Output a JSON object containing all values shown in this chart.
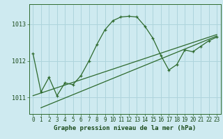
{
  "title": "Graphe pression niveau de la mer (hPa)",
  "background_color": "#ceeaf0",
  "grid_color": "#aed4dc",
  "line_color": "#2d6a2d",
  "xlim": [
    -0.5,
    23.5
  ],
  "ylim": [
    1010.55,
    1013.55
  ],
  "yticks": [
    1011,
    1012,
    1013
  ],
  "xticks": [
    0,
    1,
    2,
    3,
    4,
    5,
    6,
    7,
    8,
    9,
    10,
    11,
    12,
    13,
    14,
    15,
    16,
    17,
    18,
    19,
    20,
    21,
    22,
    23
  ],
  "main_line_x": [
    0,
    1,
    2,
    3,
    4,
    5,
    6,
    7,
    8,
    9,
    10,
    11,
    12,
    13,
    14,
    15,
    16,
    17,
    18,
    19,
    20,
    21,
    22,
    23
  ],
  "main_line_y": [
    1012.2,
    1011.15,
    1011.55,
    1011.05,
    1011.4,
    1011.35,
    1011.6,
    1012.0,
    1012.45,
    1012.85,
    1013.1,
    1013.2,
    1013.22,
    1013.2,
    1012.95,
    1012.62,
    1012.15,
    1011.75,
    1011.9,
    1012.3,
    1012.25,
    1012.4,
    1012.55,
    1012.65
  ],
  "trend_line_x": [
    0,
    23
  ],
  "trend_line_y": [
    1011.05,
    1012.72
  ],
  "trend_line2_x": [
    1,
    23
  ],
  "trend_line2_y": [
    1010.72,
    1012.68
  ],
  "title_fontsize": 6.5,
  "tick_fontsize": 5.5,
  "ytick_fontsize": 6.0
}
